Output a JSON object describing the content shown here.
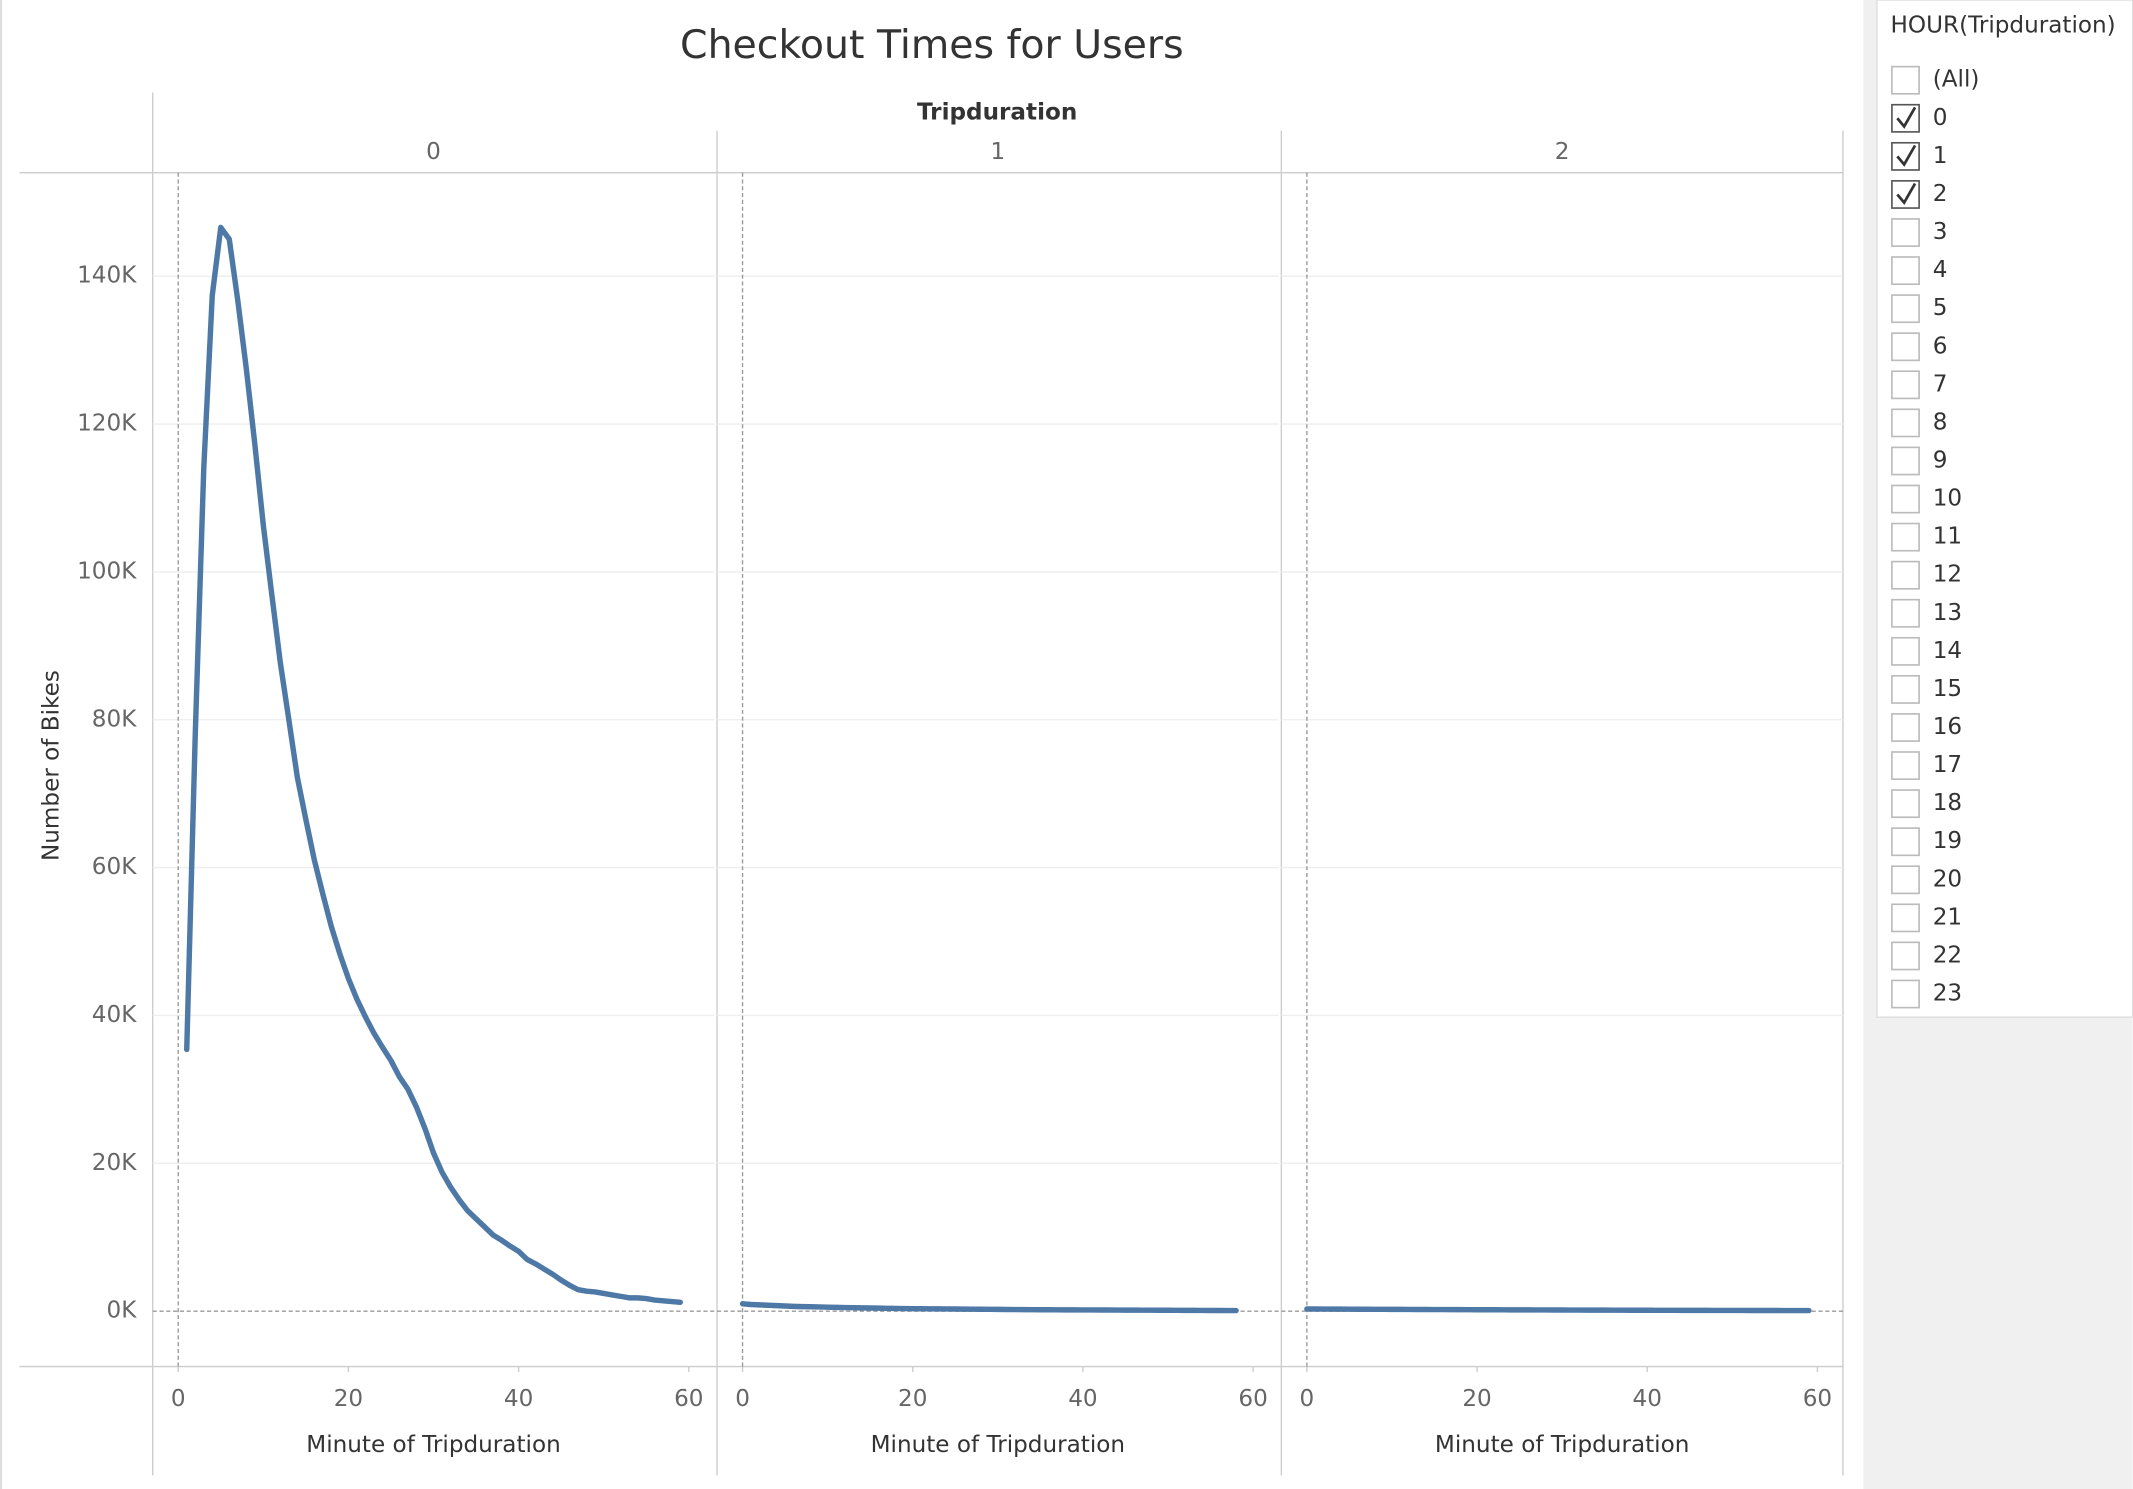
{
  "title": "Checkout Times for Users",
  "column_header": "Tripduration",
  "y_label": "Number of Bikes",
  "chart_data": [
    {
      "type": "line",
      "label": "0",
      "x_label": "Minute of Tripduration",
      "color": "#4e79a7",
      "xlim": [
        -3,
        63
      ],
      "xticks": [
        0,
        20,
        40,
        60
      ],
      "ylim": [
        -7500,
        154000
      ],
      "yticks": [
        {
          "value": 0,
          "label": "0K"
        },
        {
          "value": 20000,
          "label": "20K"
        },
        {
          "value": 40000,
          "label": "40K"
        },
        {
          "value": 60000,
          "label": "60K"
        },
        {
          "value": 80000,
          "label": "80K"
        },
        {
          "value": 100000,
          "label": "100K"
        },
        {
          "value": 120000,
          "label": "120K"
        },
        {
          "value": 140000,
          "label": "140K"
        }
      ],
      "x": [
        1,
        2,
        3,
        4,
        5,
        6,
        7,
        8,
        9,
        10,
        11,
        12,
        13,
        14,
        15,
        16,
        17,
        18,
        19,
        20,
        21,
        22,
        23,
        24,
        25,
        26,
        27,
        28,
        29,
        30,
        31,
        32,
        33,
        34,
        35,
        36,
        37,
        38,
        39,
        40,
        41,
        42,
        43,
        44,
        45,
        46,
        47,
        48,
        49,
        50,
        51,
        52,
        53,
        54,
        55,
        56,
        57,
        58,
        59
      ],
      "values": [
        35400,
        78000,
        114000,
        137400,
        146600,
        145000,
        136700,
        127500,
        117300,
        106300,
        96900,
        87700,
        80000,
        72200,
        66500,
        61000,
        56400,
        52000,
        48300,
        45000,
        42200,
        39800,
        37600,
        35700,
        33900,
        31700,
        30000,
        27600,
        24700,
        21400,
        18800,
        16800,
        15100,
        13600,
        12500,
        11400,
        10300,
        9600,
        8800,
        8100,
        7000,
        6400,
        5700,
        5000,
        4200,
        3500,
        2900,
        2700,
        2600,
        2400,
        2200,
        2000,
        1800,
        1800,
        1700,
        1500,
        1400,
        1300,
        1200
      ]
    },
    {
      "type": "line",
      "label": "1",
      "x_label": "Minute of Tripduration",
      "color": "#4e79a7",
      "xlim": [
        -3,
        63
      ],
      "xticks": [
        0,
        20,
        40,
        60
      ],
      "ylim": [
        -7500,
        154000
      ],
      "x": [
        0,
        1,
        2,
        3,
        4,
        5,
        6,
        7,
        8,
        9,
        10,
        11,
        12,
        13,
        14,
        15,
        16,
        17,
        18,
        19,
        20,
        21,
        22,
        23,
        24,
        25,
        26,
        27,
        28,
        29,
        30,
        31,
        32,
        33,
        34,
        35,
        36,
        37,
        38,
        39,
        40,
        41,
        42,
        43,
        44,
        45,
        46,
        47,
        48,
        49,
        50,
        51,
        52,
        53,
        54,
        55,
        56,
        57,
        58
      ],
      "values": [
        1000,
        900,
        850,
        800,
        750,
        700,
        650,
        620,
        600,
        570,
        540,
        510,
        490,
        470,
        450,
        430,
        410,
        390,
        370,
        350,
        340,
        330,
        320,
        310,
        300,
        290,
        280,
        270,
        260,
        250,
        240,
        230,
        220,
        210,
        200,
        195,
        190,
        185,
        180,
        175,
        170,
        165,
        160,
        155,
        150,
        145,
        140,
        135,
        130,
        125,
        120,
        115,
        110,
        105,
        100,
        95,
        90,
        85,
        80
      ]
    },
    {
      "type": "line",
      "label": "2",
      "x_label": "Minute of Tripduration",
      "color": "#4e79a7",
      "xlim": [
        -3,
        63
      ],
      "xticks": [
        0,
        20,
        40,
        60
      ],
      "ylim": [
        -7500,
        154000
      ],
      "x": [
        0,
        1,
        2,
        3,
        4,
        5,
        6,
        7,
        8,
        9,
        10,
        11,
        12,
        13,
        14,
        15,
        16,
        17,
        18,
        19,
        20,
        21,
        22,
        23,
        24,
        25,
        26,
        27,
        28,
        29,
        30,
        31,
        32,
        33,
        34,
        35,
        36,
        37,
        38,
        39,
        40,
        41,
        42,
        43,
        44,
        45,
        46,
        47,
        48,
        49,
        50,
        51,
        52,
        53,
        54,
        55,
        56,
        57,
        58,
        59
      ],
      "values": [
        300,
        290,
        285,
        280,
        275,
        270,
        265,
        260,
        255,
        250,
        245,
        240,
        235,
        230,
        225,
        220,
        215,
        210,
        205,
        200,
        196,
        192,
        188,
        184,
        180,
        176,
        172,
        168,
        164,
        160,
        156,
        152,
        148,
        144,
        140,
        137,
        134,
        131,
        128,
        125,
        122,
        119,
        116,
        113,
        110,
        108,
        106,
        104,
        102,
        100,
        98,
        96,
        94,
        92,
        90,
        88,
        86,
        84,
        82,
        80
      ]
    }
  ],
  "filter": {
    "title": "HOUR(Tripduration)",
    "items": [
      {
        "label": "(All)",
        "checked": false
      },
      {
        "label": "0",
        "checked": true
      },
      {
        "label": "1",
        "checked": true
      },
      {
        "label": "2",
        "checked": true
      },
      {
        "label": "3",
        "checked": false
      },
      {
        "label": "4",
        "checked": false
      },
      {
        "label": "5",
        "checked": false
      },
      {
        "label": "6",
        "checked": false
      },
      {
        "label": "7",
        "checked": false
      },
      {
        "label": "8",
        "checked": false
      },
      {
        "label": "9",
        "checked": false
      },
      {
        "label": "10",
        "checked": false
      },
      {
        "label": "11",
        "checked": false
      },
      {
        "label": "12",
        "checked": false
      },
      {
        "label": "13",
        "checked": false
      },
      {
        "label": "14",
        "checked": false
      },
      {
        "label": "15",
        "checked": false
      },
      {
        "label": "16",
        "checked": false
      },
      {
        "label": "17",
        "checked": false
      },
      {
        "label": "18",
        "checked": false
      },
      {
        "label": "19",
        "checked": false
      },
      {
        "label": "20",
        "checked": false
      },
      {
        "label": "21",
        "checked": false
      },
      {
        "label": "22",
        "checked": false
      },
      {
        "label": "23",
        "checked": false
      }
    ]
  }
}
